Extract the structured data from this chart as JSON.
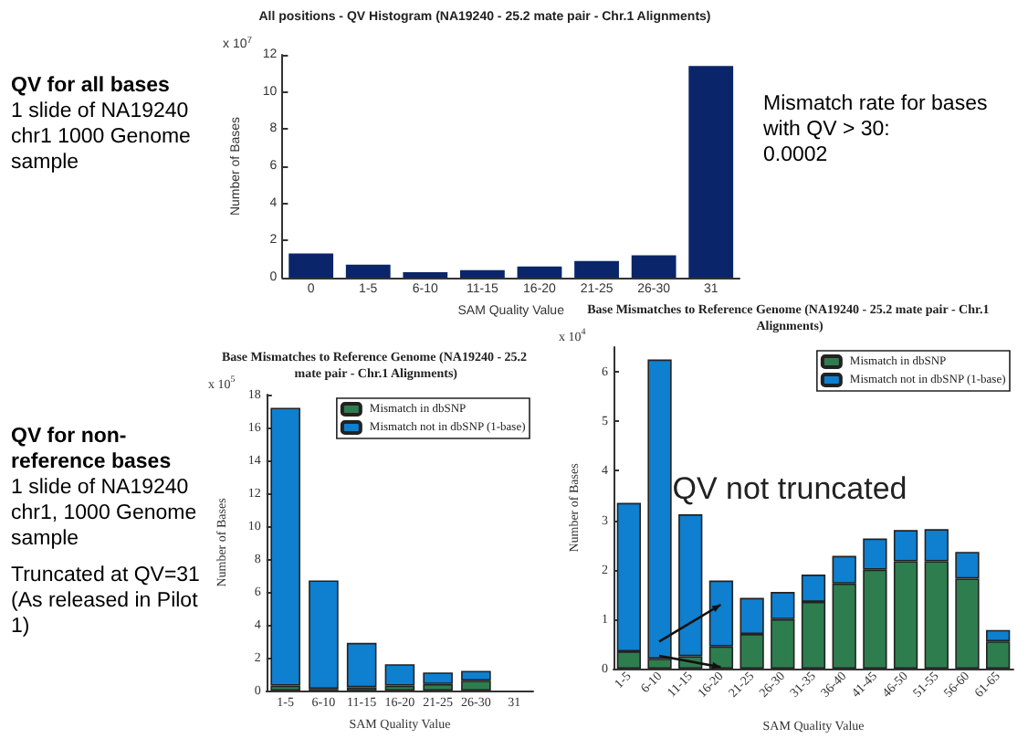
{
  "chart_data": [
    {
      "type": "other",
      "title": "QV for all bases",
      "annotations": [
        "1 slide of NA19240 chr1 1000 Genome sample"
      ]
    },
    {
      "type": "bar",
      "title": "All positions - QV Histogram (NA19240 - 25.2 mate pair - Chr.1 Alignments)",
      "xlabel": "SAM Quality Value",
      "ylabel": "Number of Bases",
      "annotations": [
        "x 10$^{7}$"
      ],
      "categories": [
        "0",
        "1-5",
        "6-10",
        "11-15",
        "16-20",
        "21-25",
        "26-30",
        "31"
      ],
      "values": [
        1.3,
        0.7,
        0.3,
        0.4,
        0.6,
        0.9,
        1.2,
        11.4
      ],
      "color": "#0a2569",
      "ylim": [
        0,
        12
      ],
      "yticks": [
        0,
        2,
        4,
        6,
        8,
        10,
        12
      ],
      "grid": false
    },
    {
      "type": "other",
      "title": "Mismatch rate for bases with QV > 30:",
      "annotations": [
        "0.0002"
      ]
    },
    {
      "type": "other",
      "title": "QV for non-reference bases",
      "annotations": [
        "1 slide of NA19240 chr1, 1000 Genome sample",
        "Truncated at QV=31 (As released in Pilot 1)"
      ]
    },
    {
      "type": "bar",
      "title": "Base Mismatches to Reference Genome (NA19240 - 25.2 mate pair - Chr.1 Alignments)",
      "xlabel": "SAM Quality Value",
      "ylabel": "Number of Bases",
      "annotations": [
        "x 10$^{5}$"
      ],
      "categories": [
        "1-5",
        "6-10",
        "11-15",
        "16-20",
        "21-25",
        "26-30",
        "31"
      ],
      "stacked": true,
      "legend": "top right",
      "grid": false,
      "ylim": [
        0,
        18
      ],
      "yticks": [
        0,
        2,
        4,
        6,
        8,
        10,
        12,
        14,
        16,
        18
      ],
      "series": [
        {
          "name": "Mismatch in dbSNP",
          "color": "#2e7d4f",
          "values": [
            0.3,
            0.1,
            0.2,
            0.3,
            0.4,
            0.6,
            null
          ]
        },
        {
          "name": "Mismatch not in dbSNP (1-base)",
          "color": "#0f7fcf",
          "values": [
            16.9,
            6.6,
            2.7,
            1.3,
            0.7,
            0.6,
            null
          ]
        }
      ]
    },
    {
      "type": "bar",
      "title": "Base Mismatches to Reference Genome (NA19240 - 25.2 mate pair - Chr.1 Alignments)",
      "xlabel": "SAM Quality Value",
      "ylabel": "Number of Bases",
      "annotations": [
        "x 10$^{4}$",
        "QV not truncated"
      ],
      "categories": [
        "1-5",
        "6-10",
        "11-15",
        "16-20",
        "21-25",
        "26-30",
        "31-35",
        "36-40",
        "41-45",
        "46-50",
        "51-55",
        "56-60",
        "61-65"
      ],
      "stacked": true,
      "legend": "top right",
      "grid": false,
      "ylim": [
        0,
        6.5
      ],
      "yticks": [
        0,
        1,
        2,
        3,
        4,
        5,
        6
      ],
      "series": [
        {
          "name": "Mismatch in dbSNP",
          "color": "#2e7d4f",
          "values": [
            0.35,
            0.2,
            0.25,
            0.45,
            0.7,
            1.0,
            1.35,
            1.72,
            2.0,
            2.17,
            2.17,
            1.82,
            0.55
          ]
        },
        {
          "name": "Mismatch not in dbSNP (1-base)",
          "color": "#0f7fcf",
          "values": [
            3.0,
            6.05,
            2.87,
            1.33,
            0.73,
            0.55,
            0.55,
            0.56,
            0.63,
            0.63,
            0.65,
            0.54,
            0.23
          ]
        }
      ]
    }
  ]
}
